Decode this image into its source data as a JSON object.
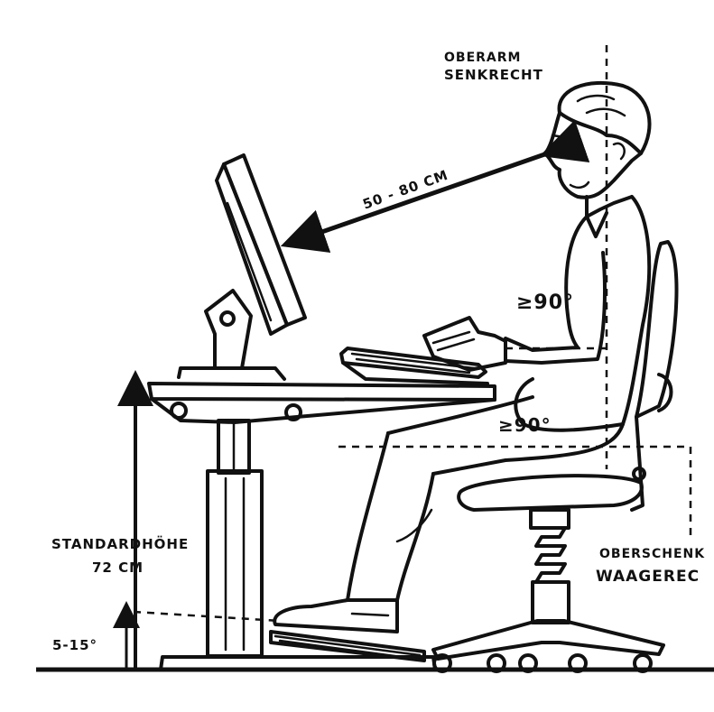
{
  "labels": {
    "upper_arm_line1": "OBERARM",
    "upper_arm_line2": "SENKRECHT",
    "distance": "50 - 80 CM",
    "elbow_angle": "≥90°",
    "knee_angle": "≥90°",
    "standard_height_line1": "STANDARDHÖHE",
    "standard_height_line2": "72 CM",
    "footrest_angle": "5-15°",
    "thigh_line1": "OBERSCHENK",
    "thigh_line2": "WAAGEREC"
  },
  "colors": {
    "ink": "#111111",
    "paper": "#ffffff"
  }
}
